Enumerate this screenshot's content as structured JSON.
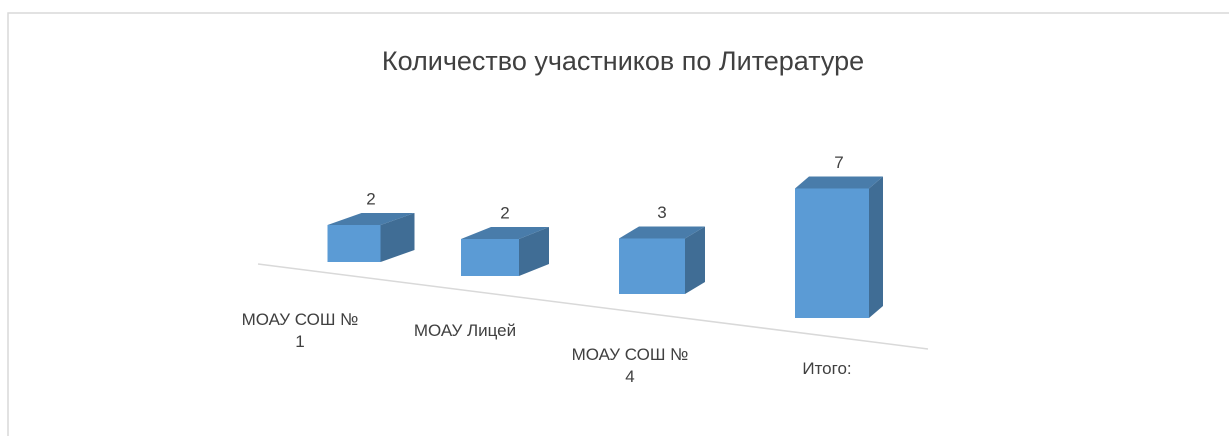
{
  "chart_data": {
    "type": "bar",
    "title": "Количество участников по Литературе",
    "categories": [
      "МОАУ СОШ № 1",
      "МОАУ Лицей",
      "МОАУ СОШ № 4",
      "Итого:"
    ],
    "values": [
      2,
      2,
      3,
      7
    ],
    "color": "#5b9bd5"
  }
}
